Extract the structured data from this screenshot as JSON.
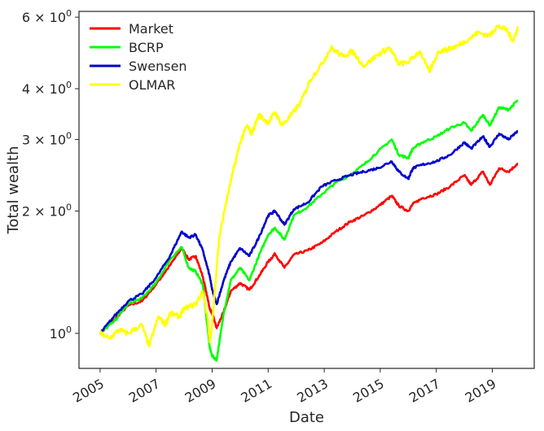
{
  "chart_data": {
    "type": "line",
    "title": "",
    "xlabel": "Date",
    "ylabel": "Total wealth",
    "xlim": [
      "2004-04-01",
      "2020-07-01"
    ],
    "ylim": [
      0.82,
      6.2
    ],
    "yscale": "log",
    "grid": false,
    "legend_position": "top-left",
    "x_ticks": [
      {
        "date": "2005-01-01",
        "label": "2005"
      },
      {
        "date": "2007-01-01",
        "label": "2007"
      },
      {
        "date": "2009-01-01",
        "label": "2009"
      },
      {
        "date": "2011-01-01",
        "label": "2011"
      },
      {
        "date": "2013-01-01",
        "label": "2013"
      },
      {
        "date": "2015-01-01",
        "label": "2015"
      },
      {
        "date": "2017-01-01",
        "label": "2017"
      },
      {
        "date": "2019-01-01",
        "label": "2019"
      }
    ],
    "y_ticks": [
      {
        "value": 1,
        "base": "10",
        "exp": "0"
      },
      {
        "value": 2,
        "base": "2 × 10",
        "exp": "0"
      },
      {
        "value": 3,
        "base": "3 × 10",
        "exp": "0"
      },
      {
        "value": 4,
        "base": "4 × 10",
        "exp": "0"
      },
      {
        "value": 6,
        "base": "6 × 10",
        "exp": "0"
      }
    ],
    "series": [
      {
        "name": "Market",
        "color": "#ff0000",
        "x": [
          "2005-01-01",
          "2005-07-01",
          "2006-01-01",
          "2006-07-01",
          "2007-01-01",
          "2007-07-01",
          "2007-12-01",
          "2008-03-01",
          "2008-06-01",
          "2008-09-01",
          "2008-12-01",
          "2009-01-01",
          "2009-03-01",
          "2009-06-01",
          "2009-09-01",
          "2010-01-01",
          "2010-05-01",
          "2010-09-01",
          "2011-01-01",
          "2011-04-01",
          "2011-08-01",
          "2011-12-01",
          "2012-06-01",
          "2012-12-01",
          "2013-06-01",
          "2013-12-01",
          "2014-06-01",
          "2014-12-01",
          "2015-06-01",
          "2015-09-01",
          "2016-01-01",
          "2016-03-01",
          "2016-07-01",
          "2017-01-01",
          "2017-07-01",
          "2018-01-01",
          "2018-04-01",
          "2018-09-01",
          "2018-12-01",
          "2019-04-01",
          "2019-08-01",
          "2019-12-01"
        ],
        "y": [
          1.0,
          1.08,
          1.17,
          1.2,
          1.32,
          1.47,
          1.62,
          1.52,
          1.55,
          1.38,
          1.15,
          1.12,
          1.03,
          1.13,
          1.27,
          1.33,
          1.28,
          1.38,
          1.5,
          1.57,
          1.45,
          1.56,
          1.6,
          1.67,
          1.78,
          1.88,
          1.95,
          2.05,
          2.18,
          2.06,
          2.0,
          2.08,
          2.15,
          2.2,
          2.3,
          2.45,
          2.32,
          2.5,
          2.32,
          2.55,
          2.5,
          2.62
        ]
      },
      {
        "name": "BCRP",
        "color": "#00ff00",
        "x": [
          "2005-01-01",
          "2005-07-01",
          "2006-01-01",
          "2006-07-01",
          "2007-01-01",
          "2007-07-01",
          "2007-12-01",
          "2008-03-01",
          "2008-06-01",
          "2008-09-01",
          "2008-12-01",
          "2009-01-01",
          "2009-03-01",
          "2009-06-01",
          "2009-09-01",
          "2010-01-01",
          "2010-05-01",
          "2010-09-01",
          "2011-01-01",
          "2011-04-01",
          "2011-08-01",
          "2011-12-01",
          "2012-06-01",
          "2012-12-01",
          "2013-06-01",
          "2013-12-01",
          "2014-06-01",
          "2014-12-01",
          "2015-06-01",
          "2015-09-01",
          "2016-01-01",
          "2016-03-01",
          "2016-07-01",
          "2017-01-01",
          "2017-07-01",
          "2018-01-01",
          "2018-04-01",
          "2018-09-01",
          "2018-12-01",
          "2019-04-01",
          "2019-08-01",
          "2019-12-01"
        ],
        "y": [
          1.0,
          1.07,
          1.18,
          1.22,
          1.33,
          1.52,
          1.63,
          1.45,
          1.42,
          1.32,
          0.92,
          0.88,
          0.86,
          1.12,
          1.35,
          1.45,
          1.35,
          1.55,
          1.75,
          1.82,
          1.7,
          1.95,
          2.05,
          2.2,
          2.35,
          2.45,
          2.6,
          2.8,
          3.0,
          2.75,
          2.7,
          2.85,
          2.95,
          3.05,
          3.2,
          3.3,
          3.15,
          3.45,
          3.25,
          3.6,
          3.55,
          3.75
        ]
      },
      {
        "name": "Swensen",
        "color": "#0000cd",
        "x": [
          "2005-01-01",
          "2005-07-01",
          "2006-01-01",
          "2006-07-01",
          "2007-01-01",
          "2007-07-01",
          "2007-12-01",
          "2008-03-01",
          "2008-06-01",
          "2008-09-01",
          "2008-12-01",
          "2009-01-01",
          "2009-03-01",
          "2009-06-01",
          "2009-09-01",
          "2010-01-01",
          "2010-05-01",
          "2010-09-01",
          "2011-01-01",
          "2011-04-01",
          "2011-08-01",
          "2011-12-01",
          "2012-06-01",
          "2012-12-01",
          "2013-06-01",
          "2013-12-01",
          "2014-06-01",
          "2014-12-01",
          "2015-06-01",
          "2015-09-01",
          "2016-01-01",
          "2016-03-01",
          "2016-07-01",
          "2017-01-01",
          "2017-07-01",
          "2018-01-01",
          "2018-04-01",
          "2018-09-01",
          "2018-12-01",
          "2019-04-01",
          "2019-08-01",
          "2019-12-01"
        ],
        "y": [
          1.0,
          1.1,
          1.2,
          1.25,
          1.37,
          1.55,
          1.78,
          1.72,
          1.75,
          1.6,
          1.38,
          1.28,
          1.18,
          1.35,
          1.5,
          1.62,
          1.55,
          1.72,
          1.95,
          2.0,
          1.85,
          2.02,
          2.1,
          2.3,
          2.38,
          2.45,
          2.5,
          2.55,
          2.65,
          2.5,
          2.4,
          2.55,
          2.6,
          2.65,
          2.75,
          2.95,
          2.85,
          3.05,
          2.88,
          3.1,
          3.0,
          3.15
        ]
      },
      {
        "name": "OLMAR",
        "color": "#ffff00",
        "x": [
          "2005-01-01",
          "2005-05-01",
          "2005-09-01",
          "2006-01-01",
          "2006-07-01",
          "2006-10-01",
          "2007-02-01",
          "2007-05-01",
          "2007-07-01",
          "2007-11-01",
          "2008-01-01",
          "2008-06-01",
          "2008-09-01",
          "2008-11-01",
          "2008-12-01",
          "2009-01-01",
          "2009-02-01",
          "2009-04-01",
          "2009-07-01",
          "2009-10-01",
          "2010-01-01",
          "2010-04-01",
          "2010-06-01",
          "2010-09-01",
          "2011-01-01",
          "2011-04-01",
          "2011-07-01",
          "2011-11-01",
          "2012-03-01",
          "2012-07-01",
          "2012-12-01",
          "2013-04-01",
          "2013-09-01",
          "2014-01-01",
          "2014-06-01",
          "2014-12-01",
          "2015-05-01",
          "2015-09-01",
          "2016-01-01",
          "2016-06-01",
          "2016-10-01",
          "2017-02-01",
          "2017-06-01",
          "2017-10-01",
          "2018-03-01",
          "2018-07-01",
          "2018-12-01",
          "2019-03-01",
          "2019-07-01",
          "2019-10-01",
          "2019-12-01"
        ],
        "y": [
          1.0,
          0.97,
          1.02,
          1.0,
          1.05,
          0.93,
          1.1,
          1.05,
          1.12,
          1.1,
          1.15,
          1.18,
          1.27,
          1.1,
          0.95,
          1.05,
          1.25,
          1.7,
          2.1,
          2.5,
          2.95,
          3.25,
          3.1,
          3.45,
          3.3,
          3.5,
          3.25,
          3.45,
          3.7,
          4.2,
          4.6,
          5.05,
          4.8,
          4.95,
          4.55,
          4.85,
          5.05,
          4.6,
          4.65,
          4.95,
          4.4,
          4.95,
          5.0,
          5.1,
          5.3,
          5.5,
          5.4,
          5.7,
          5.6,
          5.25,
          5.65
        ]
      }
    ]
  }
}
